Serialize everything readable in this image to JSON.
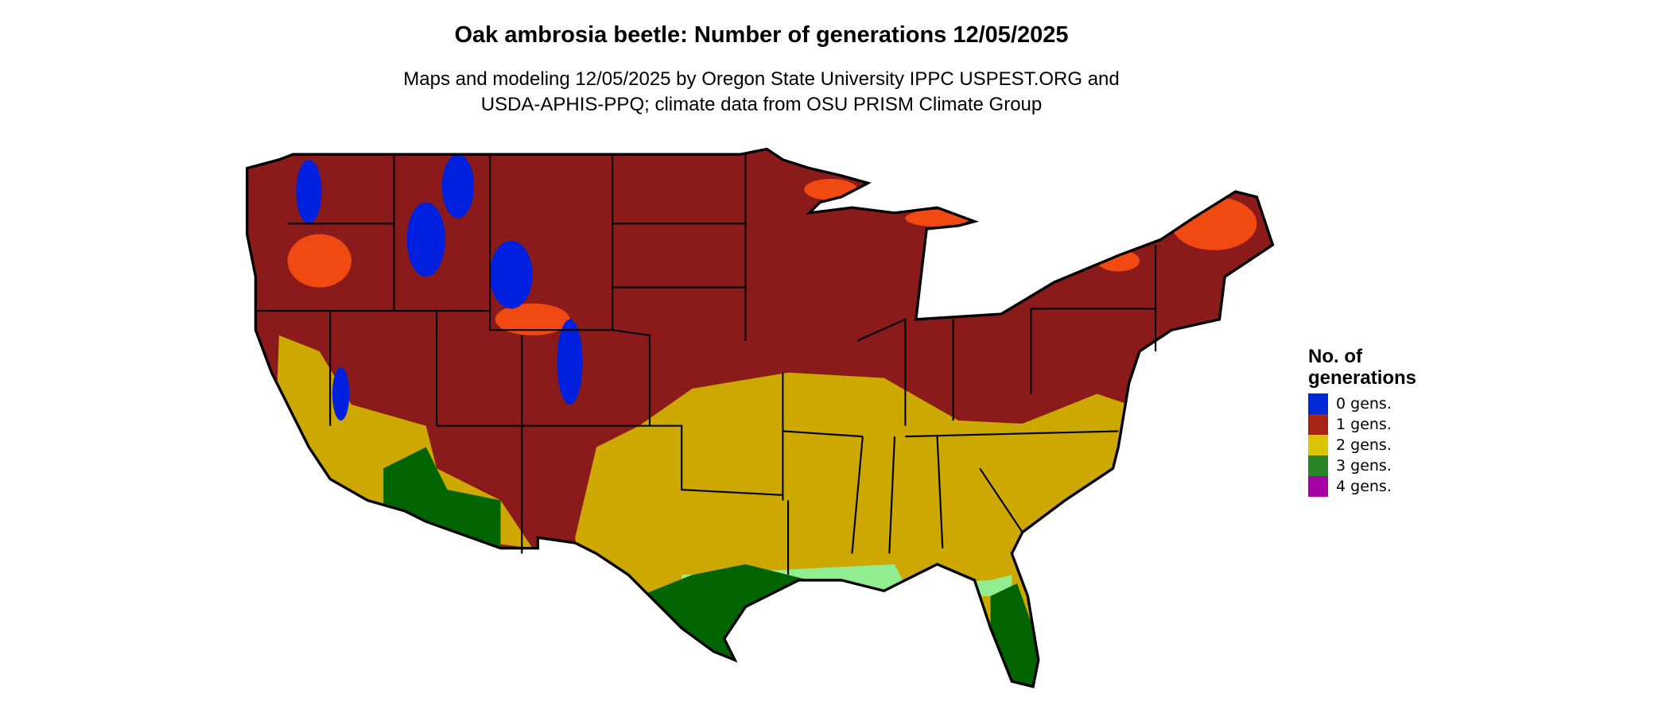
{
  "title": "Oak ambrosia beetle: Number of generations 12/05/2025",
  "subtitle_line1": "Maps and modeling 12/05/2025 by Oregon State University IPPC USPEST.ORG and",
  "subtitle_line2": "USDA-APHIS-PPQ; climate data from OSU PRISM Climate Group",
  "legend": {
    "title_line1": "No. of",
    "title_line2": "generations",
    "items": [
      {
        "label": "0 gens.",
        "color": "#0028d8"
      },
      {
        "label": "1 gens.",
        "color": "#a52416"
      },
      {
        "label": "2 gens.",
        "color": "#dcc400"
      },
      {
        "label": "3 gens.",
        "color": "#258527"
      },
      {
        "label": "4 gens.",
        "color": "#a600a6"
      }
    ]
  },
  "map_colors": {
    "one_gen_dark": "#8b1a1a",
    "one_gen_light": "#f04a12",
    "two_gen": "#cca800",
    "three_gen": "#006400",
    "three_gen_light": "#90ee90",
    "zero_gen": "#0020e0"
  }
}
